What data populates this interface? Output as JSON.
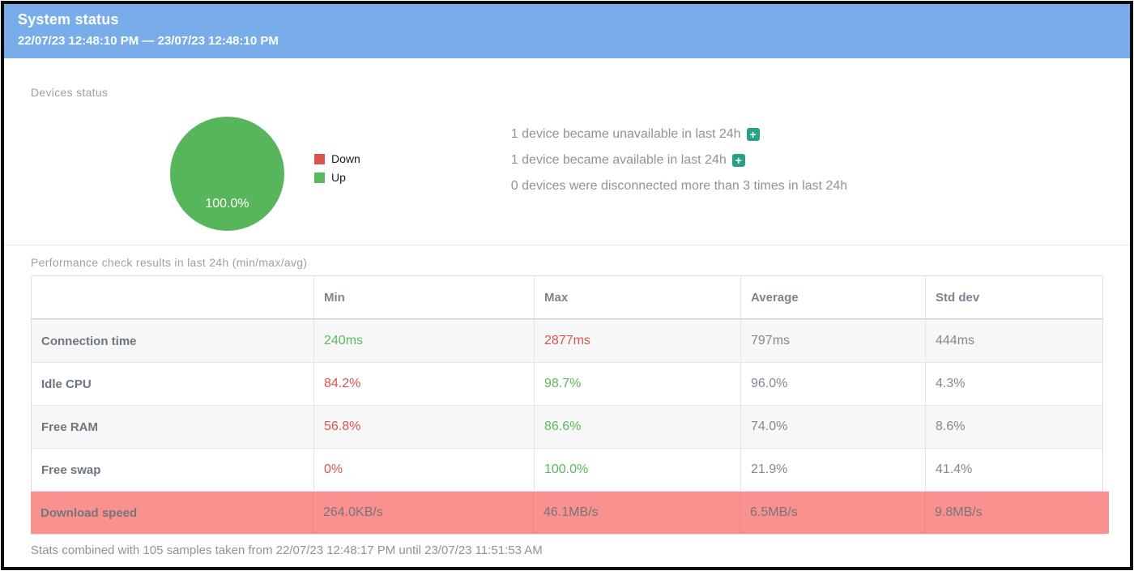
{
  "header": {
    "title": "System status",
    "date_range": "22/07/23 12:48:10 PM — 23/07/23 12:48:10 PM"
  },
  "colors": {
    "topbar_blue": "#79ade9",
    "up_green": "#5cb85c",
    "down_red": "#d9534f",
    "alert_row_bg": "#f9928e",
    "plus_badge_teal": "#2aa186"
  },
  "devices": {
    "section_label": "Devices status",
    "pie_label": "100.0%",
    "legend": [
      {
        "label": "Down",
        "color": "#d9534f"
      },
      {
        "label": "Up",
        "color": "#5cb85c"
      }
    ],
    "messages": [
      {
        "text": "1 device became unavailable in last 24h"
      },
      {
        "text": "1 device became available in last 24h"
      },
      {
        "text": "0 devices were disconnected more than 3 times in last 24h"
      }
    ],
    "plus_icon_glyph": "+"
  },
  "chart_data": {
    "type": "pie",
    "labels": [
      "Down",
      "Up"
    ],
    "values": [
      0.0,
      100.0
    ],
    "colors": [
      "#d9534f",
      "#5cb85c"
    ],
    "data_label": "100.0%",
    "legend_position": "right",
    "title": "Devices status"
  },
  "performance": {
    "section_label": "Performance check results in last 24h (min/max/avg)",
    "columns": {
      "c0": "",
      "c1": "Min",
      "c2": "Max",
      "c3": "Average",
      "c4": "Std dev"
    },
    "rows": [
      {
        "label": "Connection time",
        "min": "240ms",
        "max": "2877ms",
        "avg": "797ms",
        "std": "444ms"
      },
      {
        "label": "Idle CPU",
        "min": "84.2%",
        "max": "98.7%",
        "avg": "96.0%",
        "std": "4.3%"
      },
      {
        "label": "Free RAM",
        "min": "56.8%",
        "max": "86.6%",
        "avg": "74.0%",
        "std": "8.6%"
      },
      {
        "label": "Free swap",
        "min": "0%",
        "max": "100.0%",
        "avg": "21.9%",
        "std": "41.4%"
      },
      {
        "label": "Download speed",
        "min": "264.0KB/s",
        "max": "46.1MB/s",
        "avg": "6.5MB/s",
        "std": "9.8MB/s"
      }
    ],
    "footer": "Stats combined with 105 samples taken from 22/07/23 12:48:17 PM until 23/07/23 11:51:53 AM"
  }
}
